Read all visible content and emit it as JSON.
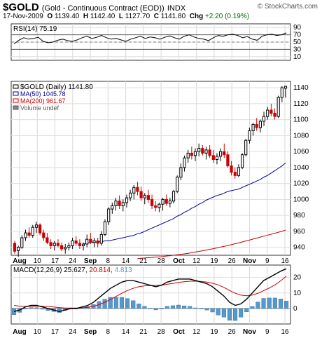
{
  "header": {
    "symbol": "$GOLD",
    "description": "(Gold - Continuous Contract (EOD))",
    "exchange": "INDX",
    "brand": "© StockCharts.com",
    "date": "17-Nov-2009",
    "open_label": "O",
    "open": "1139.40",
    "high_label": "H",
    "high": "1142.40",
    "low_label": "L",
    "low": "1127.70",
    "close_label": "C",
    "close": "1141.80",
    "chg_label": "Chg",
    "chg": "+2.20 (0.19%)"
  },
  "rsi_panel": {
    "label": "RSI(14)",
    "value": "75.19",
    "ticks": [
      "90",
      "70",
      "50",
      "30",
      "10"
    ],
    "line_color": "#000000"
  },
  "price_panel": {
    "legend": [
      {
        "text": "$GOLD (Daily)",
        "value": "1141.80",
        "color": "#000000"
      },
      {
        "text": "MA(50)",
        "value": "1045.78",
        "color": "#000099"
      },
      {
        "text": "MA(200)",
        "value": "961.67",
        "color": "#cc0000"
      },
      {
        "text": "Volume undef",
        "value": "",
        "color": "#555555"
      }
    ],
    "ticks": [
      "1140",
      "1120",
      "1100",
      "1080",
      "1060",
      "1040",
      "1020",
      "1000",
      "980",
      "960",
      "940"
    ],
    "up_color": "#000000",
    "down_color": "#cc0000"
  },
  "x_axis": {
    "labels": [
      {
        "text": "Aug",
        "bold": true
      },
      {
        "text": "10",
        "bold": false
      },
      {
        "text": "17",
        "bold": false
      },
      {
        "text": "24",
        "bold": false
      },
      {
        "text": "Sep",
        "bold": true
      },
      {
        "text": "8",
        "bold": false
      },
      {
        "text": "14",
        "bold": false
      },
      {
        "text": "21",
        "bold": false
      },
      {
        "text": "28",
        "bold": false
      },
      {
        "text": "Oct",
        "bold": true
      },
      {
        "text": "12",
        "bold": false
      },
      {
        "text": "19",
        "bold": false
      },
      {
        "text": "26",
        "bold": false
      },
      {
        "text": "Nov",
        "bold": true
      },
      {
        "text": "9",
        "bold": false
      },
      {
        "text": "16",
        "bold": false
      }
    ]
  },
  "macd_panel": {
    "label": "MACD(12,26,9)",
    "macd_value": "25.627",
    "signal_value": "20.814",
    "hist_value": "4.813",
    "macd_color": "#000000",
    "signal_color": "#cc0000",
    "hist_color": "#5599cc",
    "ticks": [
      "20",
      "10",
      "0"
    ]
  },
  "chart_data": {
    "type": "candlestick",
    "price_ylim": [
      930,
      1148
    ],
    "rsi_ylim": [
      0,
      100
    ],
    "macd_ylim": [
      -10,
      28
    ],
    "grid": true,
    "ohlc": [
      [
        945,
        948,
        932,
        935
      ],
      [
        936,
        942,
        928,
        940
      ],
      [
        940,
        955,
        938,
        952
      ],
      [
        952,
        962,
        948,
        958
      ],
      [
        958,
        965,
        952,
        955
      ],
      [
        955,
        968,
        952,
        965
      ],
      [
        965,
        972,
        958,
        968
      ],
      [
        968,
        970,
        955,
        958
      ],
      [
        958,
        962,
        948,
        952
      ],
      [
        952,
        958,
        944,
        946
      ],
      [
        946,
        950,
        938,
        942
      ],
      [
        942,
        948,
        936,
        945
      ],
      [
        945,
        950,
        940,
        942
      ],
      [
        942,
        946,
        935,
        938
      ],
      [
        938,
        944,
        932,
        940
      ],
      [
        940,
        946,
        936,
        942
      ],
      [
        942,
        952,
        938,
        948
      ],
      [
        948,
        954,
        942,
        945
      ],
      [
        945,
        950,
        938,
        942
      ],
      [
        942,
        946,
        936,
        944
      ],
      [
        944,
        956,
        940,
        950
      ],
      [
        950,
        958,
        944,
        946
      ],
      [
        946,
        952,
        940,
        948
      ],
      [
        948,
        952,
        940,
        945
      ],
      [
        945,
        960,
        942,
        956
      ],
      [
        956,
        975,
        954,
        972
      ],
      [
        972,
        990,
        968,
        988
      ],
      [
        988,
        996,
        982,
        992
      ],
      [
        992,
        1002,
        986,
        998
      ],
      [
        998,
        1005,
        988,
        992
      ],
      [
        992,
        1000,
        985,
        996
      ],
      [
        996,
        1006,
        990,
        1002
      ],
      [
        1002,
        1012,
        998,
        1008
      ],
      [
        1008,
        1018,
        1000,
        1015
      ],
      [
        1015,
        1022,
        1005,
        1010
      ],
      [
        1010,
        1016,
        998,
        1002
      ],
      [
        1002,
        1008,
        994,
        1005
      ],
      [
        1005,
        1012,
        996,
        1000
      ],
      [
        1000,
        1006,
        988,
        992
      ],
      [
        992,
        998,
        985,
        990
      ],
      [
        990,
        996,
        984,
        994
      ],
      [
        994,
        1002,
        986,
        1000
      ],
      [
        1000,
        1006,
        992,
        995
      ],
      [
        995,
        1002,
        990,
        998
      ],
      [
        998,
        1012,
        995,
        1010
      ],
      [
        1010,
        1030,
        1008,
        1028
      ],
      [
        1028,
        1045,
        1024,
        1040
      ],
      [
        1040,
        1055,
        1035,
        1052
      ],
      [
        1052,
        1062,
        1046,
        1058
      ],
      [
        1058,
        1066,
        1050,
        1055
      ],
      [
        1055,
        1064,
        1048,
        1060
      ],
      [
        1060,
        1070,
        1054,
        1064
      ],
      [
        1064,
        1068,
        1055,
        1058
      ],
      [
        1058,
        1066,
        1050,
        1062
      ],
      [
        1062,
        1068,
        1052,
        1055
      ],
      [
        1055,
        1062,
        1046,
        1050
      ],
      [
        1050,
        1058,
        1044,
        1054
      ],
      [
        1054,
        1064,
        1048,
        1060
      ],
      [
        1060,
        1070,
        1052,
        1056
      ],
      [
        1056,
        1060,
        1040,
        1042
      ],
      [
        1042,
        1048,
        1030,
        1034
      ],
      [
        1034,
        1040,
        1026,
        1030
      ],
      [
        1030,
        1044,
        1028,
        1040
      ],
      [
        1040,
        1058,
        1038,
        1056
      ],
      [
        1056,
        1076,
        1054,
        1074
      ],
      [
        1074,
        1090,
        1070,
        1086
      ],
      [
        1086,
        1096,
        1080,
        1094
      ],
      [
        1094,
        1102,
        1086,
        1090
      ],
      [
        1090,
        1100,
        1084,
        1098
      ],
      [
        1098,
        1110,
        1092,
        1104
      ],
      [
        1104,
        1116,
        1100,
        1112
      ],
      [
        1112,
        1120,
        1104,
        1108
      ],
      [
        1108,
        1114,
        1100,
        1104
      ],
      [
        1104,
        1130,
        1102,
        1128
      ],
      [
        1128,
        1142,
        1122,
        1140
      ],
      [
        1139.4,
        1142.4,
        1127.7,
        1141.8
      ]
    ],
    "ma50": [
      944,
      945,
      946,
      946,
      947,
      947,
      948,
      948,
      949,
      950,
      951,
      952,
      953,
      954,
      955,
      957,
      958,
      960,
      962,
      964,
      966,
      968,
      970,
      972,
      974,
      976,
      979,
      981,
      984,
      986,
      989,
      991,
      994,
      996,
      999,
      1001,
      1003,
      1005,
      1006,
      1008,
      1010,
      1011,
      1012,
      1013,
      1015,
      1017,
      1019,
      1021,
      1023,
      1025,
      1028,
      1030,
      1033,
      1036,
      1039,
      1042,
      1045.78
    ],
    "ma200": [
      926,
      926.3,
      926.6,
      927,
      927.3,
      927.7,
      928,
      928.5,
      929,
      929.5,
      930,
      930.6,
      931.2,
      931.8,
      932.5,
      933.2,
      934,
      934.8,
      935.6,
      936.5,
      937.4,
      938.3,
      939.2,
      940.2,
      941.2,
      942.2,
      943.3,
      944.4,
      945.5,
      946.7,
      947.9,
      949,
      950.3,
      951.5,
      952.8,
      954,
      955.2,
      956.4,
      957.6,
      958.8,
      960,
      961.67
    ],
    "rsi": [
      45,
      55,
      62,
      58,
      60,
      63,
      52,
      48,
      50,
      55,
      58,
      54,
      52,
      56,
      62,
      66,
      60,
      63,
      68,
      62,
      58,
      60,
      56,
      52,
      58,
      62,
      66,
      60,
      64,
      62,
      58,
      63,
      67,
      62,
      58,
      66,
      70,
      64,
      60,
      58,
      54,
      62,
      68,
      66,
      70,
      72,
      68,
      62,
      65,
      58,
      55,
      66,
      70,
      72,
      68,
      70,
      75.19
    ],
    "macd": [
      -2,
      -1,
      1,
      2,
      2,
      1,
      0,
      -1,
      -2,
      -1,
      0,
      0,
      1,
      2,
      4,
      7,
      10,
      13,
      15,
      17,
      18,
      18,
      17,
      16,
      15,
      14,
      15,
      17,
      18,
      19,
      19,
      19,
      18,
      17,
      16,
      14,
      11,
      8,
      4,
      2,
      3,
      6,
      10,
      14,
      18,
      20,
      22,
      24,
      25.627
    ],
    "signal": [
      2,
      1.5,
      1.3,
      1.4,
      1.5,
      1.5,
      1.3,
      1,
      0.6,
      0.3,
      0.3,
      0.3,
      0.4,
      0.8,
      1.4,
      2.5,
      4,
      5.8,
      7.8,
      9.8,
      11.6,
      13,
      14,
      14.6,
      14.8,
      14.9,
      15,
      15.6,
      16.2,
      16.8,
      17.3,
      17.6,
      17.6,
      17.4,
      17,
      16.3,
      15.2,
      13.6,
      11.6,
      9.8,
      8.6,
      8.2,
      8.7,
      9.8,
      11.5,
      13.2,
      15.2,
      17.8,
      20.814
    ],
    "hist": [
      -4,
      -2.5,
      -0.3,
      0.6,
      0.5,
      -0.5,
      -1.3,
      -2,
      -2.6,
      -1.3,
      -0.3,
      -0.3,
      0.6,
      1.2,
      2.6,
      4.5,
      6,
      7.2,
      7.2,
      7.2,
      6.4,
      5,
      3,
      1.4,
      0.2,
      -0.9,
      0,
      1.4,
      1.8,
      2.2,
      1.7,
      1.4,
      0.4,
      -0.4,
      -1,
      -2.3,
      -4.2,
      -5.6,
      -7.6,
      -7.8,
      -5.6,
      -2.2,
      1.3,
      4.2,
      6.5,
      6.8,
      6.8,
      6.2,
      4.813
    ]
  }
}
